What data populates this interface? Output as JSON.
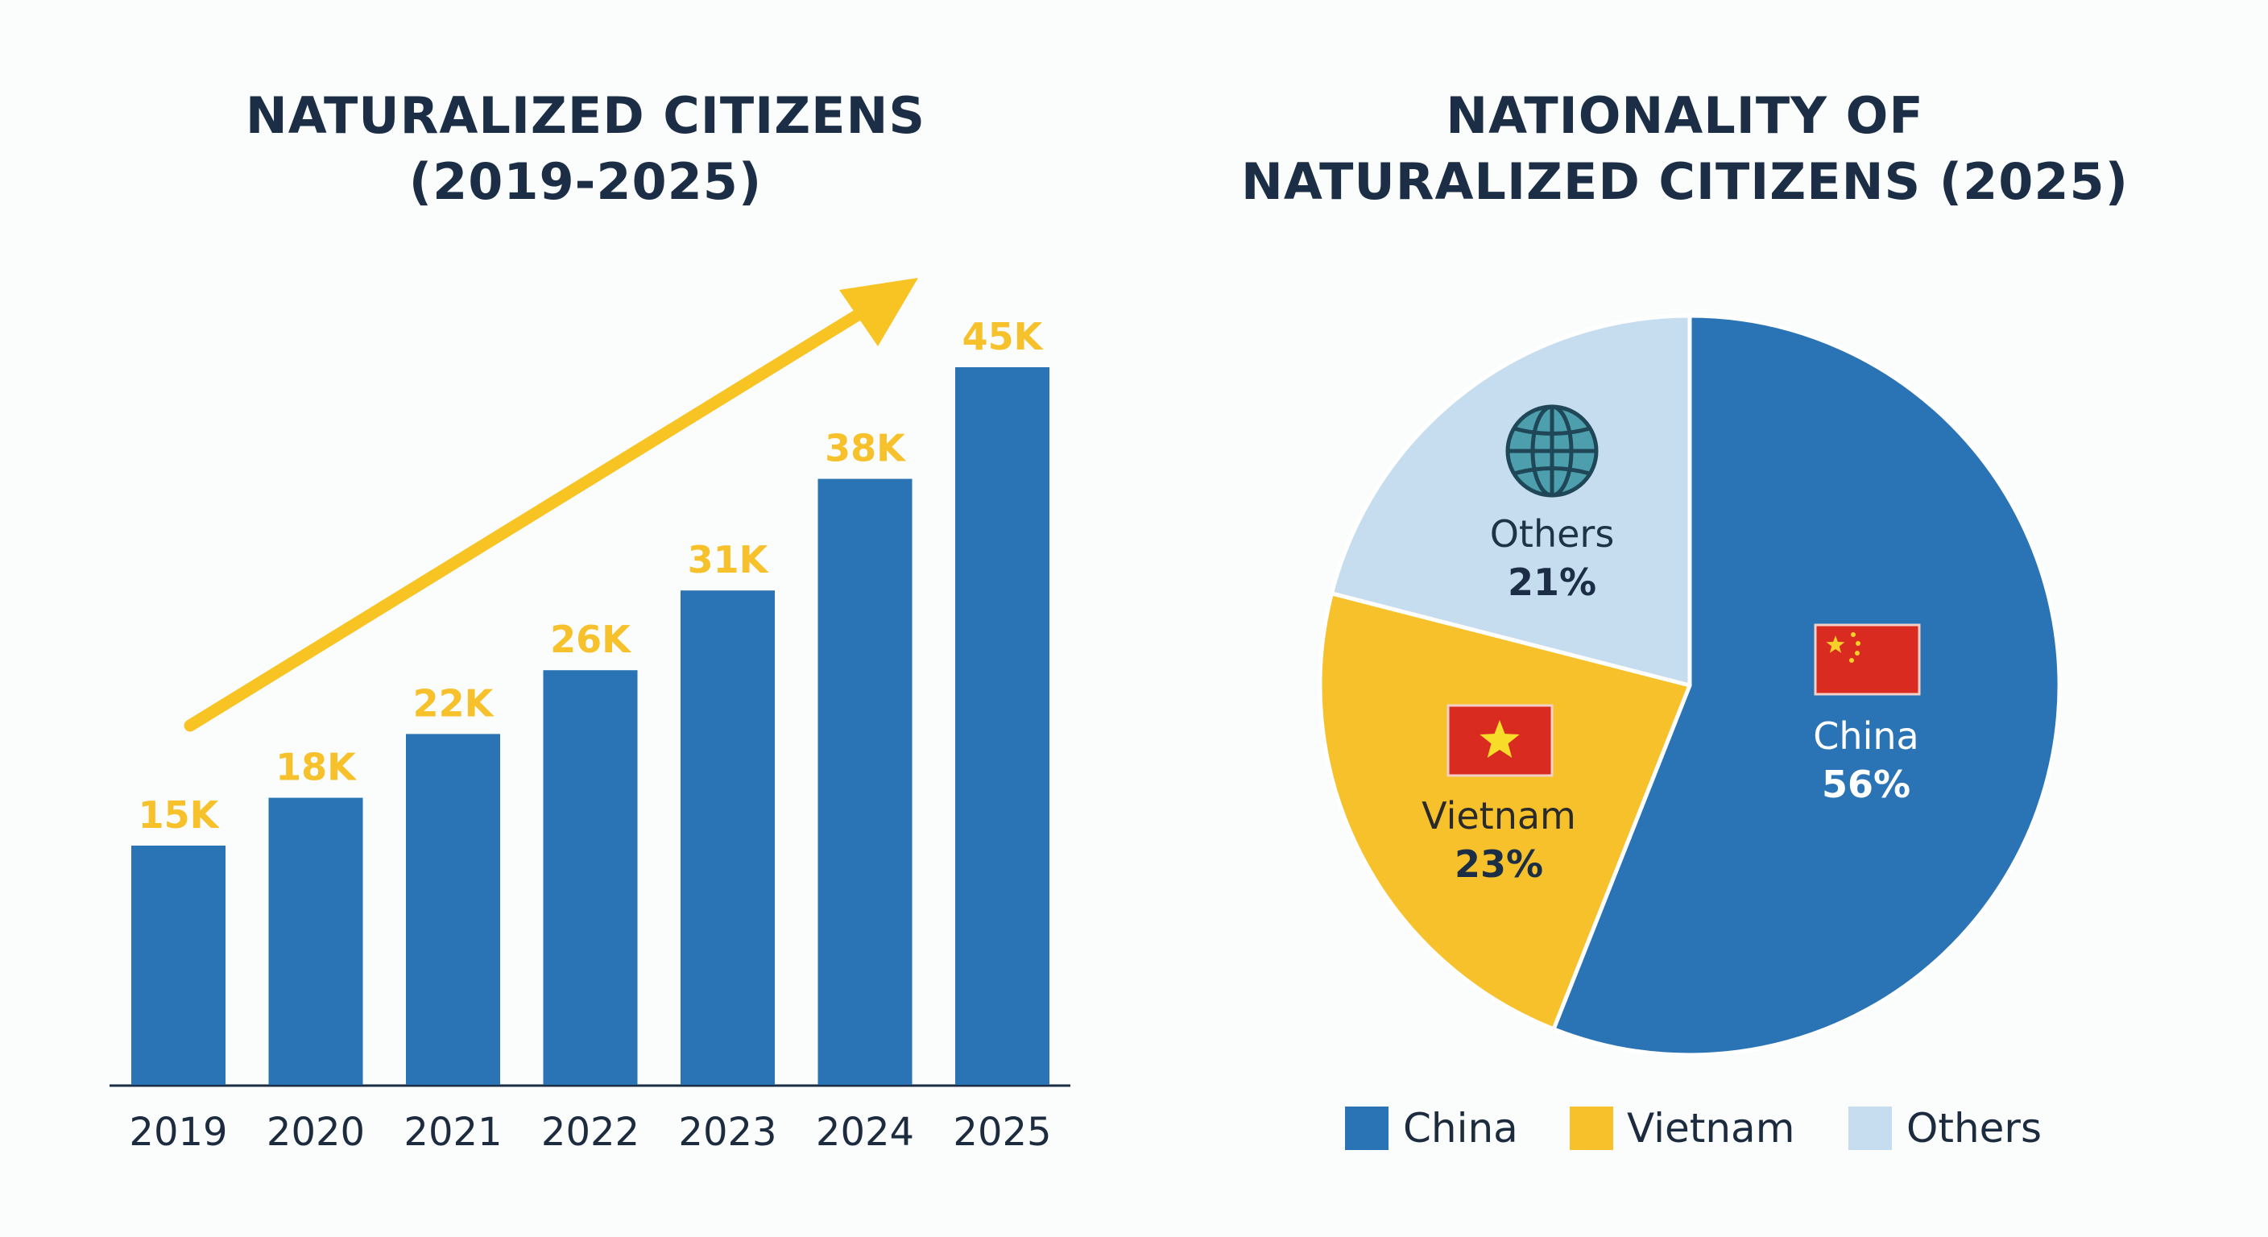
{
  "chart_data": [
    {
      "type": "bar",
      "title": "NATURALIZED CITIZENS (2019-2025)",
      "title_lines": [
        "NATURALIZED CITIZENS",
        "(2019-2025)"
      ],
      "categories": [
        "2019",
        "2020",
        "2021",
        "2022",
        "2023",
        "2024",
        "2025"
      ],
      "values": [
        15000,
        18000,
        22000,
        26000,
        31000,
        38000,
        45000
      ],
      "data_labels": [
        "15K",
        "18K",
        "22K",
        "26K",
        "31K",
        "38K",
        "45K"
      ],
      "xlabel": "",
      "ylabel": "",
      "ylim": [
        0,
        45000
      ],
      "grid": false,
      "annotation": "upward trend arrow",
      "colors": {
        "bar": "#2a74b6",
        "label": "#f6c12a",
        "arrow": "#f8c424"
      }
    },
    {
      "type": "pie",
      "title": "NATIONALITY OF NATURALIZED CITIZENS (2025)",
      "title_lines": [
        "NATIONALITY OF",
        "NATURALIZED CITIZENS (2025)"
      ],
      "slices": [
        {
          "label": "China",
          "value": 56,
          "pct_label": "56%",
          "color": "#2a74b6",
          "icon": "china-flag-icon"
        },
        {
          "label": "Vietnam",
          "value": 23,
          "pct_label": "23%",
          "color": "#f7c12b",
          "icon": "vietnam-flag-icon"
        },
        {
          "label": "Others",
          "value": 21,
          "pct_label": "21%",
          "color": "#c6ddf0",
          "icon": "globe-icon"
        }
      ],
      "legend": {
        "position": "bottom",
        "items": [
          "China",
          "Vietnam",
          "Others"
        ]
      }
    }
  ]
}
